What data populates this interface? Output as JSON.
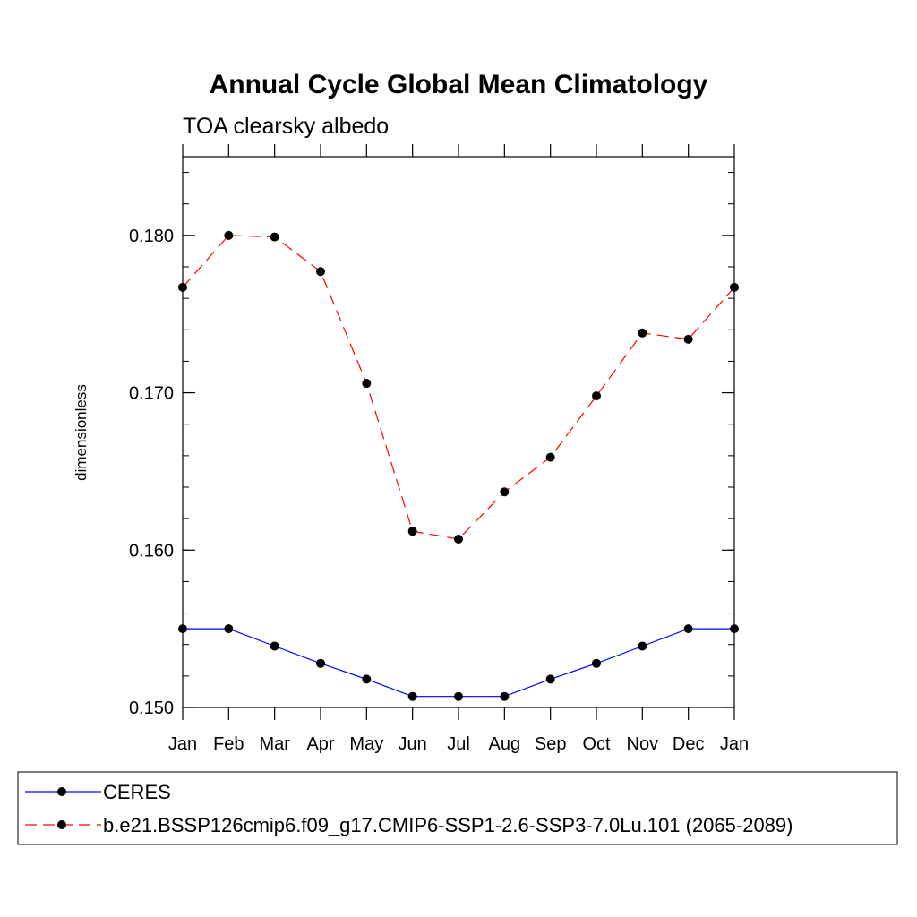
{
  "chart_data": {
    "type": "line",
    "title": "Annual Cycle Global Mean Climatology",
    "subtitle": "TOA clearsky albedo",
    "xlabel": "",
    "ylabel": "dimensionless",
    "categories": [
      "Jan",
      "Feb",
      "Mar",
      "Apr",
      "May",
      "Jun",
      "Jul",
      "Aug",
      "Sep",
      "Oct",
      "Nov",
      "Dec",
      "Jan"
    ],
    "ylim": [
      0.15,
      0.185
    ],
    "yticks": [
      0.15,
      0.16,
      0.17,
      0.18
    ],
    "ytick_labels": [
      "0.150",
      "0.160",
      "0.170",
      "0.180"
    ],
    "grid": false,
    "legend_position": "bottom",
    "series": [
      {
        "name": "CERES",
        "color": "#0000ff",
        "line_style": "solid",
        "marker": "filled-circle",
        "values": [
          0.155,
          0.155,
          0.1539,
          0.1528,
          0.1518,
          0.1507,
          0.1507,
          0.1507,
          0.1518,
          0.1528,
          0.1539,
          0.155,
          0.155
        ]
      },
      {
        "name": "b.e21.BSSP126cmip6.f09_g17.CMIP6-SSP1-2.6-SSP3-7.0Lu.101 (2065-2089)",
        "color": "#ff0000",
        "line_style": "dashed",
        "marker": "filled-circle",
        "values": [
          0.1767,
          0.18,
          0.1799,
          0.1777,
          0.1706,
          0.1612,
          0.1607,
          0.1637,
          0.1659,
          0.1698,
          0.1738,
          0.1734,
          0.1767
        ]
      }
    ]
  }
}
